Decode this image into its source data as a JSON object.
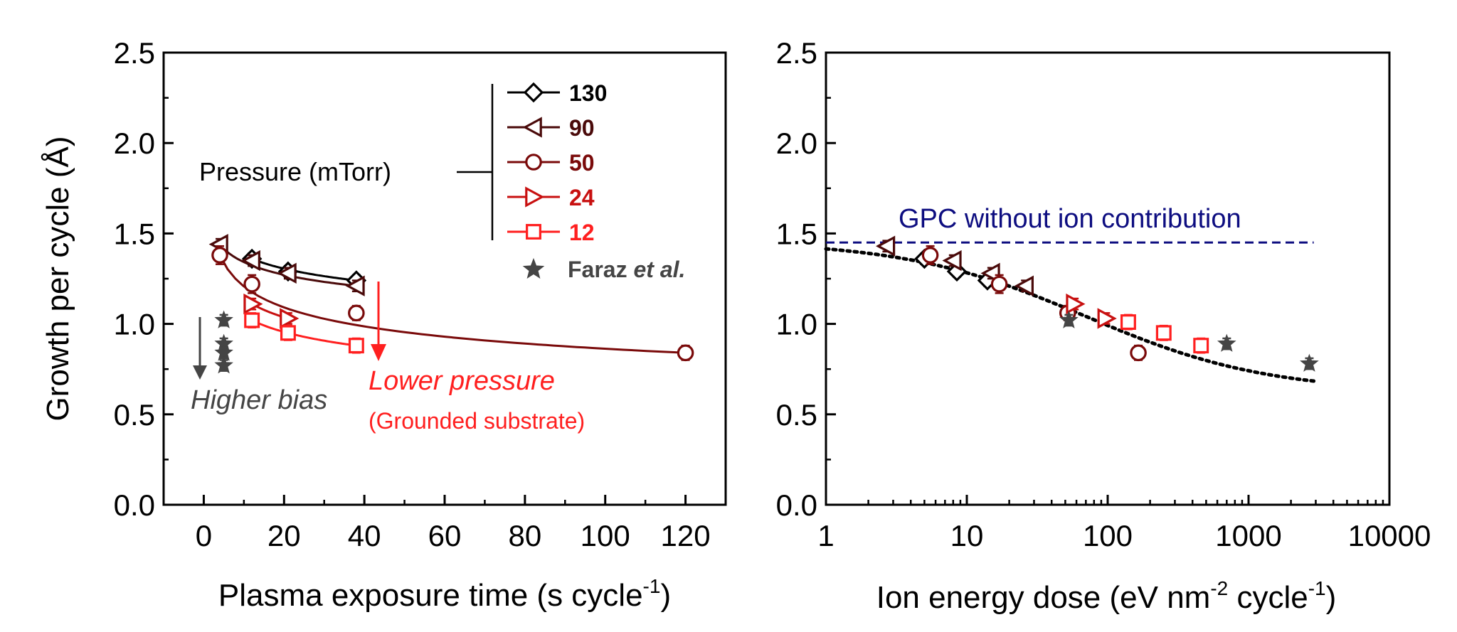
{
  "colors": {
    "p130": "#000000",
    "p90": "#4a0a0a",
    "p50": "#7a0a0a",
    "p24": "#c81010",
    "p12": "#ff1f1f",
    "faraz": "#454545",
    "gpc_line": "#0d0d80",
    "fit": "#000000"
  },
  "chart_data": [
    {
      "type": "scatter",
      "panel": "left",
      "xlabel": "Plasma exposure time (s cycle",
      "xlabel_sup": "-1",
      "xlabel_tail": ")",
      "ylabel": "Growth per cycle (Å)",
      "xlim": [
        -10,
        130
      ],
      "ylim": [
        0,
        2.5
      ],
      "xticks": [
        "0",
        "20",
        "40",
        "60",
        "80",
        "100",
        "120"
      ],
      "yticks": [
        "0.0",
        "0.5",
        "1.0",
        "1.5",
        "2.0",
        "2.5"
      ],
      "legend_title": "Pressure (mTorr)",
      "legend_placement": "top-right",
      "series": [
        {
          "name": "130",
          "marker": "diamond",
          "color_key": "p130",
          "x": [
            12,
            21,
            38
          ],
          "y": [
            1.36,
            1.29,
            1.24
          ],
          "err": [
            0.03,
            0.03,
            0.03
          ]
        },
        {
          "name": "90",
          "marker": "triangle-left",
          "color_key": "p90",
          "x": [
            4,
            12,
            21,
            38
          ],
          "y": [
            1.44,
            1.35,
            1.28,
            1.21
          ],
          "err": [
            0.03,
            0.03,
            0.03,
            0.03
          ]
        },
        {
          "name": "50",
          "marker": "circle",
          "color_key": "p50",
          "x": [
            4,
            12,
            38,
            120
          ],
          "y": [
            1.38,
            1.22,
            1.06,
            0.84
          ],
          "err": [
            0.05,
            0.05,
            0.04,
            0.04
          ]
        },
        {
          "name": "24",
          "marker": "triangle-right",
          "color_key": "p24",
          "x": [
            12,
            21
          ],
          "y": [
            1.11,
            1.03
          ],
          "err": [
            0.03,
            0.03
          ]
        },
        {
          "name": "12",
          "marker": "square",
          "color_key": "p12",
          "x": [
            12,
            21,
            38
          ],
          "y": [
            1.02,
            0.95,
            0.88
          ],
          "err": [
            0.04,
            0.04,
            0.04
          ]
        },
        {
          "name": "Faraz et al.",
          "marker": "star",
          "color_key": "faraz",
          "x": [
            5,
            5,
            5,
            5
          ],
          "y": [
            1.02,
            0.89,
            0.84,
            0.77
          ],
          "err": [
            0.03,
            0.03,
            0.03,
            0.03
          ]
        }
      ],
      "annotations": {
        "higher_bias": "Higher bias",
        "lower_pressure": "Lower pressure",
        "grounded": "(Grounded substrate)"
      }
    },
    {
      "type": "scatter",
      "panel": "right",
      "xscale": "log",
      "xlabel": "Ion energy dose (eV nm",
      "xlabel_sup1": "-2",
      "xlabel_mid": " cycle",
      "xlabel_sup2": "-1",
      "xlabel_tail": ")",
      "xlim": [
        1,
        10000
      ],
      "ylim": [
        0,
        2.5
      ],
      "xticks": [
        "1",
        "10",
        "100",
        "1000",
        "10000"
      ],
      "yticks": [
        "0.0",
        "0.5",
        "1.0",
        "1.5",
        "2.0",
        "2.5"
      ],
      "reference_line": {
        "label": "GPC without ion contribution",
        "y": 1.45
      },
      "series": [
        {
          "name": "130",
          "marker": "diamond",
          "color_key": "p130",
          "x": [
            5,
            8.5,
            14
          ],
          "y": [
            1.36,
            1.29,
            1.24
          ],
          "err": [
            0.03,
            0.03,
            0.03
          ]
        },
        {
          "name": "90",
          "marker": "triangle-left",
          "color_key": "p90",
          "x": [
            2.7,
            8,
            15,
            26
          ],
          "y": [
            1.43,
            1.35,
            1.28,
            1.21
          ],
          "err": [
            0.03,
            0.03,
            0.03,
            0.03
          ]
        },
        {
          "name": "50",
          "marker": "circle",
          "color_key": "p50",
          "x": [
            5.5,
            17,
            52,
            165
          ],
          "y": [
            1.38,
            1.22,
            1.06,
            0.84
          ],
          "err": [
            0.05,
            0.05,
            0.04,
            0.04
          ]
        },
        {
          "name": "24",
          "marker": "triangle-right",
          "color_key": "p24",
          "x": [
            58,
            97
          ],
          "y": [
            1.11,
            1.03
          ],
          "err": [
            0.03,
            0.03
          ]
        },
        {
          "name": "12",
          "marker": "square",
          "color_key": "p12",
          "x": [
            140,
            250,
            460
          ],
          "y": [
            1.01,
            0.95,
            0.88
          ],
          "err": [
            0.04,
            0.04,
            0.04
          ]
        },
        {
          "name": "Faraz et al.",
          "marker": "star",
          "color_key": "faraz",
          "x": [
            53,
            700,
            2700
          ],
          "y": [
            1.02,
            0.89,
            0.78
          ],
          "err": [
            0.03,
            0.03,
            0.03
          ]
        }
      ]
    }
  ],
  "legend": {
    "items": [
      {
        "label": "130",
        "marker": "diamond",
        "color_key": "p130"
      },
      {
        "label": "90",
        "marker": "triangle-left",
        "color_key": "p90"
      },
      {
        "label": "50",
        "marker": "circle",
        "color_key": "p50"
      },
      {
        "label": "24",
        "marker": "triangle-right",
        "color_key": "p24"
      },
      {
        "label": "12",
        "marker": "square",
        "color_key": "p12"
      }
    ],
    "faraz_name": "Faraz ",
    "faraz_etal": "et al."
  }
}
